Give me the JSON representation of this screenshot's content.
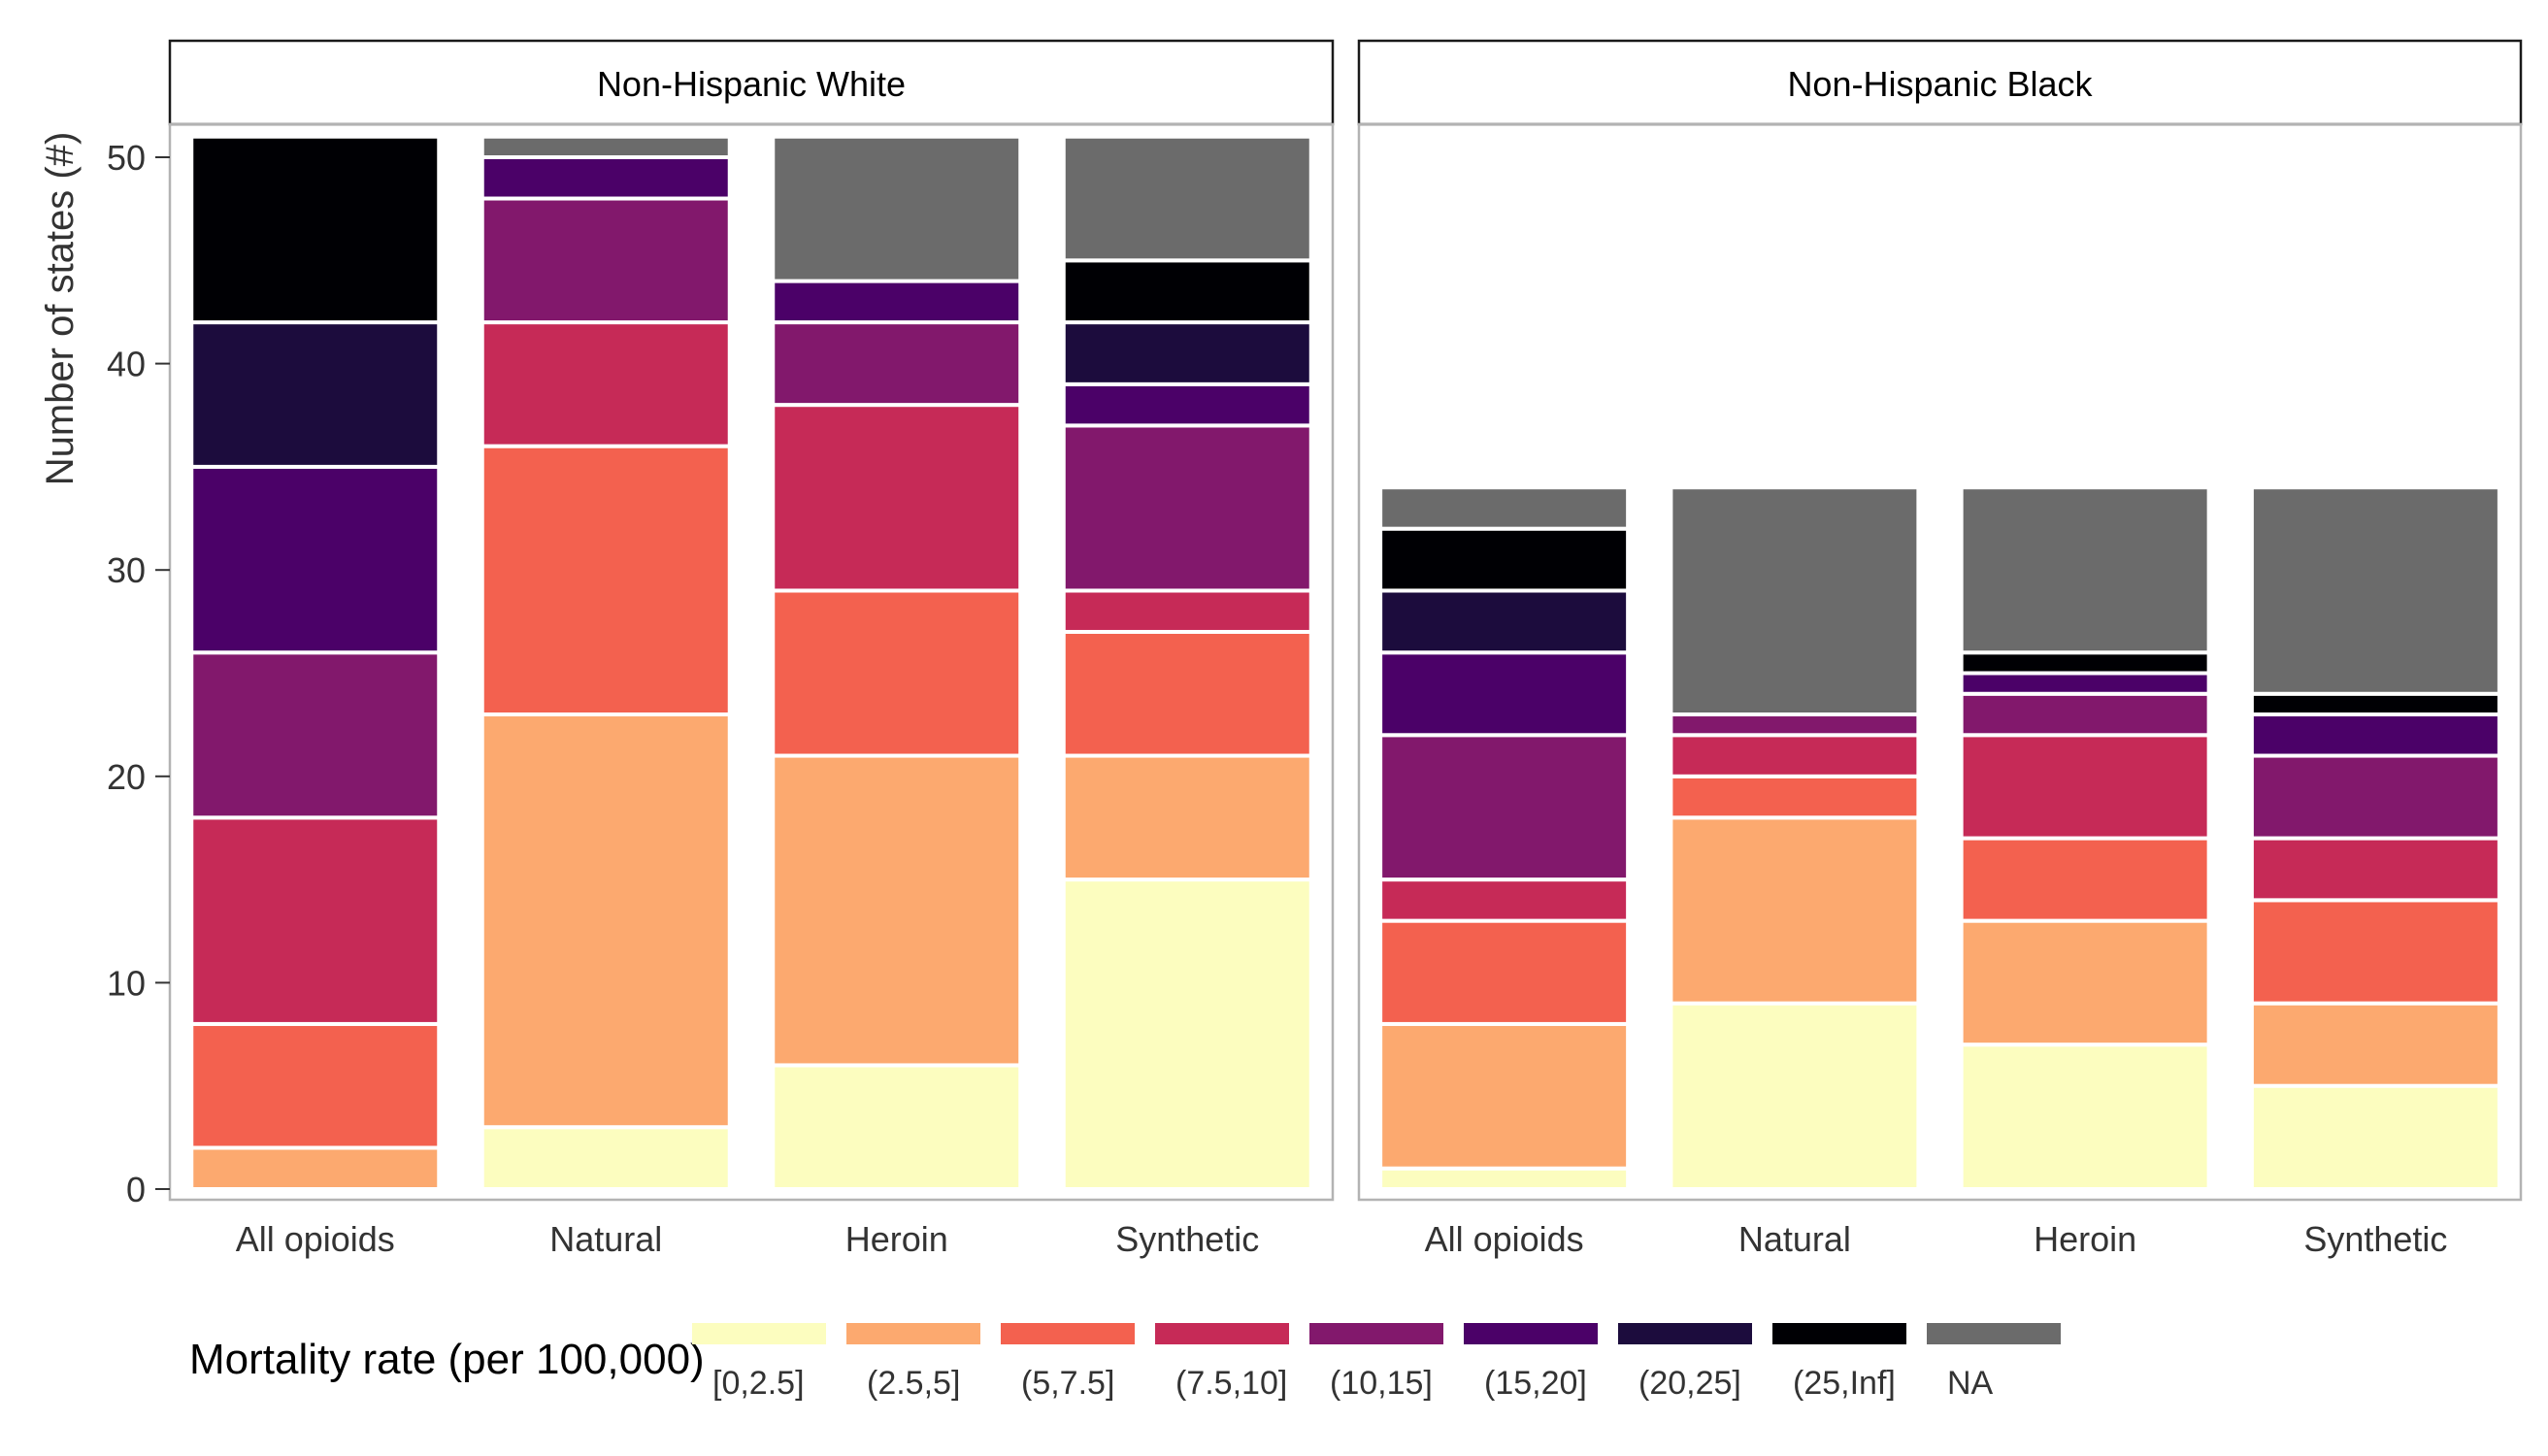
{
  "chart_data": {
    "type": "bar",
    "stacked": true,
    "ylabel": "Number of states (#)",
    "ylim": [
      0,
      53
    ],
    "y_ticks": [
      0,
      10,
      20,
      30,
      40,
      50
    ],
    "categories": [
      "All opioids",
      "Natural",
      "Heroin",
      "Synthetic"
    ],
    "legend": {
      "title": "Mortality rate (per 100,000)",
      "position": "bottom",
      "levels": [
        "[0,2.5]",
        "(2.5,5]",
        "(5,7.5]",
        "(7.5,10]",
        "(10,15]",
        "(15,20]",
        "(20,25]",
        "(25,Inf]",
        "NA"
      ],
      "colors": [
        "#FCFDBF",
        "#FCA96F",
        "#F3614F",
        "#C62A57",
        "#82186C",
        "#4B0168",
        "#1C0C3D",
        "#000004",
        "#6B6B6B"
      ]
    },
    "panels": [
      {
        "title": "Non-Hispanic White",
        "series_by_level": [
          [
            0,
            3,
            6,
            15
          ],
          [
            2,
            20,
            15,
            6
          ],
          [
            6,
            13,
            8,
            6
          ],
          [
            10,
            6,
            9,
            2
          ],
          [
            8,
            6,
            4,
            8
          ],
          [
            9,
            2,
            2,
            2
          ],
          [
            7,
            0,
            0,
            3
          ],
          [
            9,
            0,
            0,
            3
          ],
          [
            0,
            1,
            7,
            6
          ]
        ]
      },
      {
        "title": "Non-Hispanic Black",
        "series_by_level": [
          [
            1,
            9,
            7,
            5
          ],
          [
            7,
            9,
            6,
            4
          ],
          [
            5,
            2,
            4,
            5
          ],
          [
            2,
            2,
            5,
            3
          ],
          [
            7,
            1,
            2,
            4
          ],
          [
            4,
            0,
            1,
            2
          ],
          [
            3,
            0,
            0,
            0
          ],
          [
            3,
            0,
            1,
            1
          ],
          [
            2,
            11,
            8,
            10
          ]
        ]
      }
    ]
  }
}
